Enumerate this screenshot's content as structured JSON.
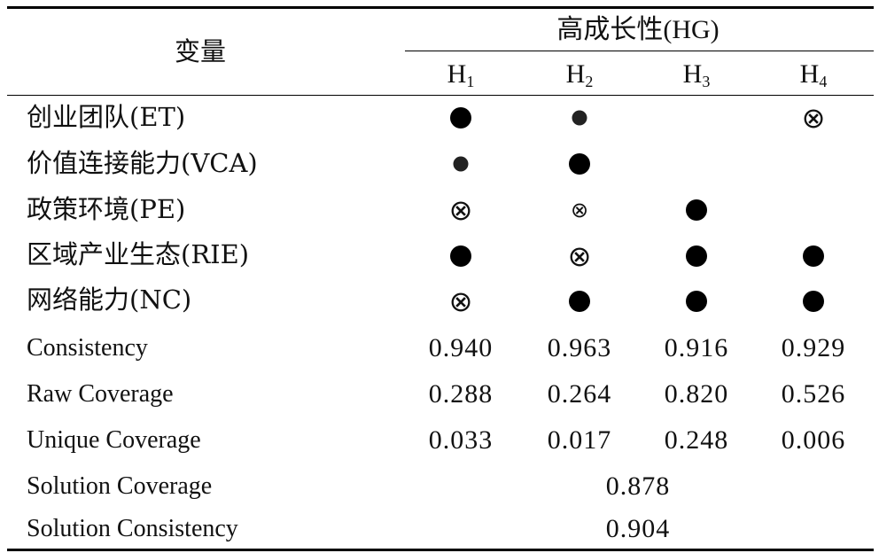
{
  "header": {
    "var_label": "变量",
    "group_label": "高成长性(HG)",
    "configs": [
      {
        "base": "H",
        "sub": "1"
      },
      {
        "base": "H",
        "sub": "2"
      },
      {
        "base": "H",
        "sub": "3"
      },
      {
        "base": "H",
        "sub": "4"
      }
    ]
  },
  "conditions": [
    {
      "label": "创业团队(ET)",
      "cells": [
        "core-present",
        "peripheral-present",
        "blank",
        "core-absent"
      ]
    },
    {
      "label": "价值连接能力(VCA)",
      "cells": [
        "peripheral-present",
        "core-present",
        "blank",
        "blank"
      ]
    },
    {
      "label": "政策环境(PE)",
      "cells": [
        "core-absent",
        "peripheral-absent",
        "core-present",
        "blank"
      ]
    },
    {
      "label": "区域产业生态(RIE)",
      "cells": [
        "core-present",
        "core-absent",
        "core-present",
        "core-present"
      ]
    },
    {
      "label": "网络能力(NC)",
      "cells": [
        "core-absent",
        "core-present",
        "core-present",
        "core-present"
      ]
    }
  ],
  "metrics": [
    {
      "label": "Consistency",
      "values": [
        "0.940",
        "0.963",
        "0.916",
        "0.929"
      ]
    },
    {
      "label": "Raw Coverage",
      "values": [
        "0.288",
        "0.264",
        "0.820",
        "0.526"
      ]
    },
    {
      "label": "Unique Coverage",
      "values": [
        "0.033",
        "0.017",
        "0.248",
        "0.006"
      ]
    }
  ],
  "solution": [
    {
      "label": "Solution Coverage",
      "value": "0.878"
    },
    {
      "label": "Solution Consistency",
      "value": "0.904"
    }
  ],
  "symbols": {
    "core-absent": "⊗",
    "peripheral-absent": "⊗"
  }
}
